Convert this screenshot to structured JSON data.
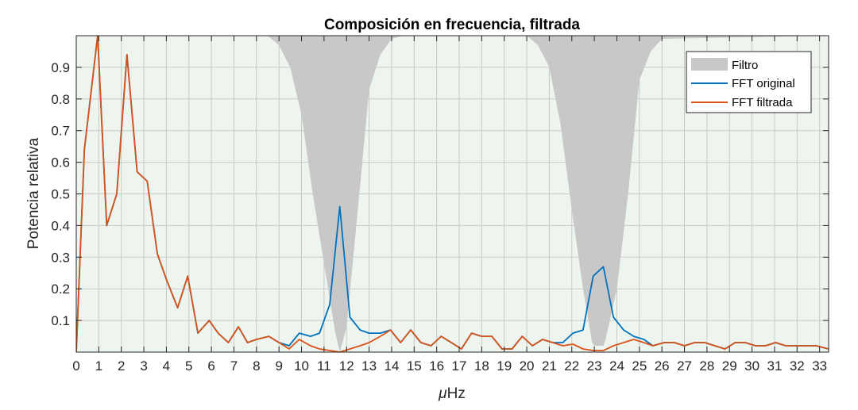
{
  "chart_data": {
    "type": "line",
    "title": "Composición en frecuencia, filtrada",
    "xlabel_symbol": "μ",
    "xlabel_unit": "Hz",
    "ylabel": "Potencia relativa",
    "xlim": [
      0,
      33.4
    ],
    "ylim": [
      0,
      1
    ],
    "xticks": [
      0,
      1,
      2,
      3,
      4,
      5,
      6,
      7,
      8,
      9,
      10,
      11,
      12,
      13,
      14,
      15,
      16,
      17,
      18,
      19,
      20,
      21,
      22,
      23,
      24,
      25,
      26,
      27,
      28,
      29,
      30,
      31,
      32,
      33
    ],
    "yticks": [
      0.1,
      0.2,
      0.3,
      0.4,
      0.5,
      0.6,
      0.7,
      0.8,
      0.9
    ],
    "grid": true,
    "legend_position": "top-right",
    "colors": {
      "plot_background": "#eef5ef",
      "filter_fill": "#c8c8c8",
      "fft_original": "#0072BD",
      "fft_filtrada": "#D95319",
      "grid": "#c6cbc7",
      "axes": "#262626"
    },
    "series": [
      {
        "name": "Filtro",
        "kind": "area",
        "x": [
          0,
          8.5,
          9.0,
          9.5,
          10.0,
          10.5,
          11.0,
          11.5,
          11.7,
          12.0,
          12.5,
          13.0,
          13.5,
          14.0,
          14.5,
          20.0,
          20.5,
          21.0,
          21.5,
          22.0,
          22.5,
          22.9,
          23.0,
          23.4,
          23.5,
          24.0,
          24.5,
          25.0,
          25.5,
          26.0,
          33.4
        ],
        "values": [
          1,
          1,
          0.97,
          0.9,
          0.75,
          0.5,
          0.28,
          0.06,
          0.0,
          0.08,
          0.45,
          0.83,
          0.94,
          0.99,
          1,
          1,
          0.97,
          0.9,
          0.72,
          0.45,
          0.2,
          0.03,
          0.02,
          0.02,
          0.04,
          0.2,
          0.5,
          0.86,
          0.95,
          0.99,
          1
        ]
      },
      {
        "name": "FFT original",
        "kind": "line",
        "x": [
          0,
          0.36,
          0.95,
          1.35,
          1.8,
          2.25,
          2.7,
          3.15,
          3.6,
          4.0,
          4.5,
          4.95,
          5.4,
          5.9,
          6.3,
          6.75,
          7.2,
          7.6,
          8.0,
          8.55,
          9.0,
          9.45,
          9.9,
          10.4,
          10.8,
          11.25,
          11.7,
          12.15,
          12.6,
          13.0,
          13.5,
          13.95,
          14.4,
          14.85,
          15.3,
          15.75,
          16.2,
          16.65,
          17.1,
          17.55,
          18.0,
          18.45,
          18.9,
          19.35,
          19.8,
          20.25,
          20.7,
          21.15,
          21.6,
          22.05,
          22.5,
          22.95,
          23.4,
          23.85,
          24.3,
          24.75,
          25.2,
          25.6,
          26.1,
          26.55,
          27.0,
          27.45,
          27.9,
          28.35,
          28.8,
          29.25,
          29.7,
          30.15,
          30.6,
          31.05,
          31.5,
          31.95,
          32.4,
          32.85,
          33.4
        ],
        "values": [
          0.0,
          0.64,
          1.0,
          0.4,
          0.5,
          0.94,
          0.57,
          0.54,
          0.31,
          0.23,
          0.14,
          0.24,
          0.06,
          0.1,
          0.06,
          0.03,
          0.08,
          0.03,
          0.04,
          0.05,
          0.03,
          0.02,
          0.06,
          0.05,
          0.06,
          0.15,
          0.46,
          0.11,
          0.07,
          0.06,
          0.06,
          0.07,
          0.03,
          0.07,
          0.03,
          0.02,
          0.05,
          0.03,
          0.01,
          0.06,
          0.05,
          0.05,
          0.01,
          0.01,
          0.05,
          0.02,
          0.04,
          0.03,
          0.03,
          0.06,
          0.07,
          0.24,
          0.27,
          0.11,
          0.07,
          0.05,
          0.04,
          0.02,
          0.03,
          0.03,
          0.02,
          0.03,
          0.03,
          0.02,
          0.01,
          0.03,
          0.03,
          0.02,
          0.02,
          0.03,
          0.02,
          0.02,
          0.02,
          0.02,
          0.01
        ]
      },
      {
        "name": "FFT filtrada",
        "kind": "line",
        "x": [
          0,
          0.36,
          0.95,
          1.35,
          1.8,
          2.25,
          2.7,
          3.15,
          3.6,
          4.0,
          4.5,
          4.95,
          5.4,
          5.9,
          6.3,
          6.75,
          7.2,
          7.6,
          8.0,
          8.55,
          9.0,
          9.45,
          9.9,
          10.4,
          10.8,
          11.25,
          11.7,
          12.15,
          12.6,
          13.0,
          13.5,
          13.95,
          14.4,
          14.85,
          15.3,
          15.75,
          16.2,
          16.65,
          17.1,
          17.55,
          18.0,
          18.45,
          18.9,
          19.35,
          19.8,
          20.25,
          20.7,
          21.15,
          21.6,
          22.05,
          22.5,
          22.95,
          23.4,
          23.85,
          24.3,
          24.75,
          25.2,
          25.6,
          26.1,
          26.55,
          27.0,
          27.45,
          27.9,
          28.35,
          28.8,
          29.25,
          29.7,
          30.15,
          30.6,
          31.05,
          31.5,
          31.95,
          32.4,
          32.85,
          33.4
        ],
        "values": [
          0.0,
          0.64,
          1.0,
          0.4,
          0.5,
          0.94,
          0.57,
          0.54,
          0.31,
          0.23,
          0.14,
          0.24,
          0.06,
          0.1,
          0.06,
          0.03,
          0.08,
          0.03,
          0.04,
          0.05,
          0.03,
          0.01,
          0.04,
          0.02,
          0.01,
          0.005,
          0.0,
          0.01,
          0.02,
          0.03,
          0.05,
          0.07,
          0.03,
          0.07,
          0.03,
          0.02,
          0.05,
          0.03,
          0.01,
          0.06,
          0.05,
          0.05,
          0.01,
          0.01,
          0.05,
          0.02,
          0.04,
          0.03,
          0.02,
          0.025,
          0.01,
          0.005,
          0.005,
          0.02,
          0.03,
          0.04,
          0.03,
          0.02,
          0.03,
          0.03,
          0.02,
          0.03,
          0.03,
          0.02,
          0.01,
          0.03,
          0.03,
          0.02,
          0.02,
          0.03,
          0.02,
          0.02,
          0.02,
          0.02,
          0.01
        ]
      }
    ]
  }
}
